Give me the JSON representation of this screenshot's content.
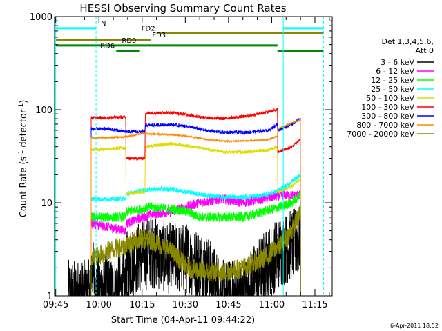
{
  "chart_data": {
    "type": "line",
    "title": "HESSI Observing Summary Count Rates",
    "xlabel": "Start Time (04-Apr-11 09:44:22)",
    "ylabel_main": "Count Rate (s",
    "ylabel_sup1": "-1",
    "ylabel_mid": " detector",
    "ylabel_sup2": "-1",
    "ylabel_end": ")",
    "yscale": "log",
    "ylim": [
      1,
      1000
    ],
    "xlim_minutes": [
      -0.4,
      96
    ],
    "x_ticks": [
      {
        "m": 0,
        "label": "09:45"
      },
      {
        "m": 15,
        "label": "10:00"
      },
      {
        "m": 30,
        "label": "10:15"
      },
      {
        "m": 45,
        "label": "10:30"
      },
      {
        "m": 60,
        "label": "10:45"
      },
      {
        "m": 75,
        "label": "11:00"
      },
      {
        "m": 90,
        "label": "11:15"
      }
    ],
    "y_ticks": [
      {
        "v": 1,
        "label": "1"
      },
      {
        "v": 10,
        "label": "10"
      },
      {
        "v": 100,
        "label": "100"
      },
      {
        "v": 1000,
        "label": "1000"
      }
    ],
    "legend": {
      "header1": "Det 1,3,4,5,6,",
      "header2": "Att 0",
      "placement": "right"
    },
    "series": [
      {
        "name": "3 - 6 keV",
        "color": "#000000",
        "noise": 0.9,
        "points": [
          [
            4.3,
            1
          ],
          [
            12.3,
            1
          ],
          [
            12.4,
            2
          ],
          [
            14,
            1.2
          ],
          [
            20,
            1.1
          ],
          [
            24.3,
            1.2
          ],
          [
            24.4,
            2
          ],
          [
            28,
            2.5
          ],
          [
            33,
            3
          ],
          [
            40,
            2.5
          ],
          [
            46,
            2.5
          ],
          [
            52,
            2
          ],
          [
            58,
            1
          ],
          [
            65,
            1
          ],
          [
            72,
            2
          ],
          [
            78,
            3
          ],
          [
            82,
            3.5
          ],
          [
            85,
            4
          ]
        ]
      },
      {
        "name": "6 - 12 keV",
        "color": "#ff00ff",
        "noise": 0.12,
        "points": [
          [
            12.3,
            6
          ],
          [
            18,
            5.5
          ],
          [
            24.3,
            5
          ],
          [
            24.4,
            6
          ],
          [
            33,
            7.5
          ],
          [
            40,
            8
          ],
          [
            50,
            10
          ],
          [
            58,
            11
          ],
          [
            65,
            10
          ],
          [
            72,
            11
          ],
          [
            78,
            12
          ],
          [
            82,
            12
          ],
          [
            85,
            12
          ]
        ]
      },
      {
        "name": "12 - 25 keV",
        "color": "#00ff00",
        "noise": 0.12,
        "points": [
          [
            12.3,
            7
          ],
          [
            18,
            7
          ],
          [
            24.3,
            7
          ],
          [
            24.4,
            8
          ],
          [
            33,
            9
          ],
          [
            40,
            8.5
          ],
          [
            46,
            8
          ],
          [
            50,
            7
          ],
          [
            58,
            7
          ],
          [
            65,
            7
          ],
          [
            72,
            8
          ],
          [
            78,
            9
          ],
          [
            82,
            10
          ],
          [
            85,
            12
          ]
        ]
      },
      {
        "name": "25 - 50 keV",
        "color": "#00ffff",
        "noise": 0.06,
        "points": [
          [
            12.3,
            11
          ],
          [
            18,
            11
          ],
          [
            24.3,
            11
          ],
          [
            24.4,
            12.5
          ],
          [
            33,
            14
          ],
          [
            40,
            14
          ],
          [
            46,
            13
          ],
          [
            52,
            12
          ],
          [
            58,
            11.5
          ],
          [
            65,
            11.5
          ],
          [
            72,
            12
          ],
          [
            76,
            13
          ],
          [
            80,
            15
          ],
          [
            82,
            17
          ],
          [
            85,
            20
          ]
        ]
      },
      {
        "name": "50 - 100 keV",
        "color": "#dddd00",
        "noise": 0.04,
        "points": [
          [
            12.3,
            37
          ],
          [
            18,
            38
          ],
          [
            24.3,
            39
          ],
          [
            24.4,
            12.5
          ],
          [
            31,
            13
          ],
          [
            31.1,
            40
          ],
          [
            40,
            43
          ],
          [
            46,
            41
          ],
          [
            52,
            38
          ],
          [
            58,
            35
          ],
          [
            66,
            35
          ],
          [
            74,
            37
          ],
          [
            77,
            40
          ],
          [
            77.1,
            13
          ],
          [
            82,
            15
          ],
          [
            85,
            18
          ]
        ]
      },
      {
        "name": "100 - 300 keV",
        "color": "#ff0000",
        "noise": 0.04,
        "points": [
          [
            12.3,
            82
          ],
          [
            18,
            82
          ],
          [
            24.3,
            83
          ],
          [
            24.4,
            30
          ],
          [
            31,
            30
          ],
          [
            31.1,
            92
          ],
          [
            40,
            93
          ],
          [
            46,
            88
          ],
          [
            52,
            82
          ],
          [
            58,
            80
          ],
          [
            66,
            85
          ],
          [
            74,
            95
          ],
          [
            77,
            100
          ],
          [
            77.1,
            35
          ],
          [
            82,
            40
          ],
          [
            85,
            48
          ]
        ]
      },
      {
        "name": "300 - 800 keV",
        "color": "#0000ff",
        "noise": 0.04,
        "points": [
          [
            12.3,
            62
          ],
          [
            18,
            62
          ],
          [
            24.3,
            58
          ],
          [
            24.4,
            58
          ],
          [
            31,
            58
          ],
          [
            31.1,
            68
          ],
          [
            40,
            69
          ],
          [
            46,
            66
          ],
          [
            52,
            60
          ],
          [
            58,
            57
          ],
          [
            66,
            57
          ],
          [
            74,
            60
          ],
          [
            77,
            70
          ],
          [
            77.1,
            60
          ],
          [
            82,
            70
          ],
          [
            85,
            80
          ]
        ]
      },
      {
        "name": "800 - 7000 keV",
        "color": "#ff8800",
        "noise": 0.02,
        "points": [
          [
            12.3,
            50
          ],
          [
            18,
            50
          ],
          [
            24.3,
            51
          ],
          [
            28,
            54
          ],
          [
            31,
            56
          ],
          [
            31.1,
            55
          ],
          [
            40,
            54
          ],
          [
            46,
            52
          ],
          [
            52,
            48
          ],
          [
            58,
            46
          ],
          [
            66,
            46
          ],
          [
            74,
            48
          ],
          [
            77,
            52
          ],
          [
            77.1,
            62
          ],
          [
            82,
            72
          ],
          [
            85,
            78
          ]
        ]
      },
      {
        "name": "7000 - 20000 keV",
        "color": "#888800",
        "noise": 0.25,
        "points": [
          [
            12.3,
            2.5
          ],
          [
            18,
            3
          ],
          [
            24.3,
            3.5
          ],
          [
            28,
            4
          ],
          [
            33,
            4
          ],
          [
            40,
            3
          ],
          [
            46,
            2
          ],
          [
            52,
            1.8
          ],
          [
            58,
            1.8
          ],
          [
            65,
            2
          ],
          [
            72,
            2.5
          ],
          [
            78,
            3.5
          ],
          [
            82,
            5
          ],
          [
            85,
            8
          ]
        ]
      }
    ],
    "flag_bars": [
      {
        "label": "N",
        "color": "#00ffff",
        "segments": [
          [
            0,
            14
          ],
          [
            79,
            93
          ]
        ],
        "value": 750
      },
      {
        "label": "FD2",
        "color": "#888800",
        "segments": [
          [
            35,
            93
          ]
        ],
        "value": 660
      },
      {
        "label": "FD3",
        "color": "#888800",
        "segments": [
          [
            0,
            33
          ]
        ],
        "value": 560
      },
      {
        "label": "RD0",
        "color": "#008800",
        "segments": [
          [
            0,
            77
          ]
        ],
        "value": 490
      },
      {
        "label": "RD6",
        "color": "#008800",
        "segments": [
          [
            21,
            29
          ],
          [
            77,
            93
          ]
        ],
        "value": 430
      }
    ],
    "vertical_lines": [
      {
        "m": 0,
        "color": "#00ffff",
        "style": "solid"
      },
      {
        "m": 14,
        "color": "#00ffff",
        "style": "dashed"
      },
      {
        "m": 79,
        "color": "#00ffff",
        "style": "solid"
      },
      {
        "m": 93,
        "color": "#00ffff",
        "style": "dashed"
      }
    ],
    "timestamp": "6-Apr-2011 18:52",
    "grid": false
  }
}
